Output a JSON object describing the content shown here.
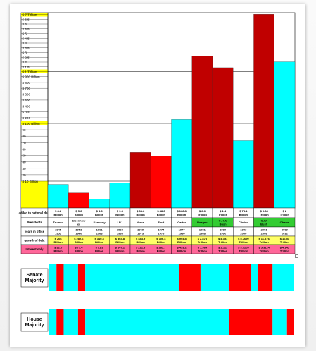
{
  "chart_data": {
    "type": "bar",
    "scale_bands": [
      {
        "name": "Trillion",
        "ticks": [
          "$ 7 Trillion",
          "$ 6.5",
          "$ 6",
          "$ 5.5",
          "$ 5",
          "$ 4.5",
          "$ 4",
          "$ 3.5",
          "$ 3",
          "$ 2.5",
          "$ 2",
          "$ 1.5",
          "$ 1 Trillion"
        ]
      },
      {
        "name": "Billion (100-900)",
        "ticks": [
          "$ 900 Billion",
          "$ 800",
          "$ 700",
          "$ 600",
          "$ 500",
          "$ 400",
          "$ 300",
          "$ 200"
        ]
      },
      {
        "name": "Billion (10-90)",
        "ticks": [
          "$ 100 Billion",
          "90",
          "80",
          "70",
          "60",
          "50",
          "40",
          "30",
          "20",
          "$ 10 Billion"
        ]
      }
    ],
    "categories": [
      "Truman",
      "Eisenhower",
      "Kennedy",
      "LBJ",
      "Nixon",
      "Ford",
      "Carter",
      "Reagan",
      "G.H.W Bush",
      "Clinton",
      "G.W. Bush",
      "Obama"
    ],
    "party_colors": {
      "Democrat": "#00ffff",
      "Republican": "#ff0000",
      "Republican_dark": "#c00000"
    },
    "bars": [
      {
        "president": "Truman",
        "party": "Democrat",
        "added_label": "$ 8.8 Billion",
        "value_billion": 8.8
      },
      {
        "president": "Eisenhower",
        "party": "Republican",
        "added_label": "$ 5.6 Billion",
        "value_billion": 5.6
      },
      {
        "president": "Kennedy",
        "party": "Democrat",
        "added_label": "$ 3.3 Billion",
        "value_billion": 3.3
      },
      {
        "president": "LBJ",
        "party": "Democrat",
        "added_label": "$ 9.3 Billion",
        "value_billion": 9.3
      },
      {
        "president": "Nixon",
        "party": "Republican",
        "added_label": "$ 54.6 Billion",
        "value_billion": 54.6
      },
      {
        "president": "Ford",
        "party": "Republican",
        "added_label": "$ 48.6 Billion",
        "value_billion": 48.6
      },
      {
        "president": "Carter",
        "party": "Democrat",
        "added_label": "$ 168.8 Billion",
        "value_billion": 168.8
      },
      {
        "president": "Reagan",
        "party": "Republican",
        "added_label": "$ 2.6 Trillion",
        "value_billion": 2600
      },
      {
        "president": "G.H.W Bush",
        "party": "Republican",
        "added_label": "$ 1.4 Trillion",
        "value_billion": 1400
      },
      {
        "president": "Clinton",
        "party": "Democrat",
        "added_label": "$ 73.1 Billion",
        "value_billion": 73.1
      },
      {
        "president": "G.W. Bush",
        "party": "Republican",
        "added_label": "$ 6.84 Trillion",
        "value_billion": 6840
      },
      {
        "president": "Obama",
        "party": "Democrat",
        "added_label": "$ 2 Trillion",
        "value_billion": 2000
      }
    ],
    "table": {
      "row_labels": [
        "added to national debt",
        "Presidents",
        "years in office",
        "growth of debt",
        "Interest only"
      ],
      "presidents_display": [
        "Truman",
        "Eisenhow er",
        "Kennedy",
        "LBJ",
        "Nixon",
        "Ford",
        "Carter",
        "Reagan",
        "G.H.W Bush",
        "Clinton",
        "G.W. Bush",
        "Obama"
      ],
      "presidents_highlight": [
        false,
        false,
        false,
        false,
        false,
        false,
        false,
        true,
        true,
        false,
        true,
        true
      ],
      "years": [
        [
          "1945",
          "1952"
        ],
        [
          "1953",
          "1960"
        ],
        [
          "1961",
          "1963"
        ],
        [
          "1963",
          "1968"
        ],
        [
          "1969",
          "1973"
        ],
        [
          "1974",
          "1976"
        ],
        [
          "1977",
          "1980"
        ],
        [
          "1981",
          "1988"
        ],
        [
          "1989",
          "1992"
        ],
        [
          "1993",
          "2000"
        ],
        [
          "2001",
          "2008"
        ],
        [
          "2009",
          "2012"
        ]
      ],
      "growth": [
        "$ 266 Billion",
        "$ 282.6 Billion",
        "$ 310.3 Billion",
        "$ 365.8 Billion",
        "$ 483.9 Billion",
        "$ 706.4 Billion",
        "$ 994.8 Billion",
        "$ 2.878 Trillion",
        "$ 4.351 Trillion",
        "$ 5.7699 Trillion",
        "$ 11.876 Trillion",
        "$ 16.53 Trillion"
      ],
      "interest": [
        "$ 32.0 Billion",
        "$ 77.4 Billion",
        "$ 91.8 Billion",
        "$ 147.1 Billion",
        "$ 221.8 Billion",
        "$ 282.7 Billion",
        "$ 453.2 Billion",
        "$ 1.364 Trillion",
        "$ 2.111 Trillion",
        "$ 3.7205 Trillion",
        "$ 5.3114 Trillion",
        "$ 4.145 Trillion"
      ]
    },
    "senate_majority": {
      "label": "Senate Majority",
      "segments": [
        {
          "party": "Democrat",
          "from": 1945,
          "to": 1947
        },
        {
          "party": "Republican",
          "from": 1947,
          "to": 1949
        },
        {
          "party": "Democrat",
          "from": 1949,
          "to": 1953
        },
        {
          "party": "Republican",
          "from": 1953,
          "to": 1955
        },
        {
          "party": "Democrat",
          "from": 1955,
          "to": 1981
        },
        {
          "party": "Republican",
          "from": 1981,
          "to": 1987
        },
        {
          "party": "Democrat",
          "from": 1987,
          "to": 1995
        },
        {
          "party": "Republican",
          "from": 1995,
          "to": 2001
        },
        {
          "party": "Democrat",
          "from": 2001,
          "to": 2003
        },
        {
          "party": "Republican",
          "from": 2003,
          "to": 2007
        },
        {
          "party": "Democrat",
          "from": 2007,
          "to": 2013
        }
      ]
    },
    "house_majority": {
      "label": "House Majority",
      "segments": [
        {
          "party": "Democrat",
          "from": 1945,
          "to": 1947
        },
        {
          "party": "Republican",
          "from": 1947,
          "to": 1949
        },
        {
          "party": "Democrat",
          "from": 1949,
          "to": 1953
        },
        {
          "party": "Republican",
          "from": 1953,
          "to": 1955
        },
        {
          "party": "Democrat",
          "from": 1955,
          "to": 1995
        },
        {
          "party": "Republican",
          "from": 1995,
          "to": 2007
        },
        {
          "party": "Democrat",
          "from": 2007,
          "to": 2011
        },
        {
          "party": "Republican",
          "from": 2011,
          "to": 2013
        }
      ]
    }
  }
}
